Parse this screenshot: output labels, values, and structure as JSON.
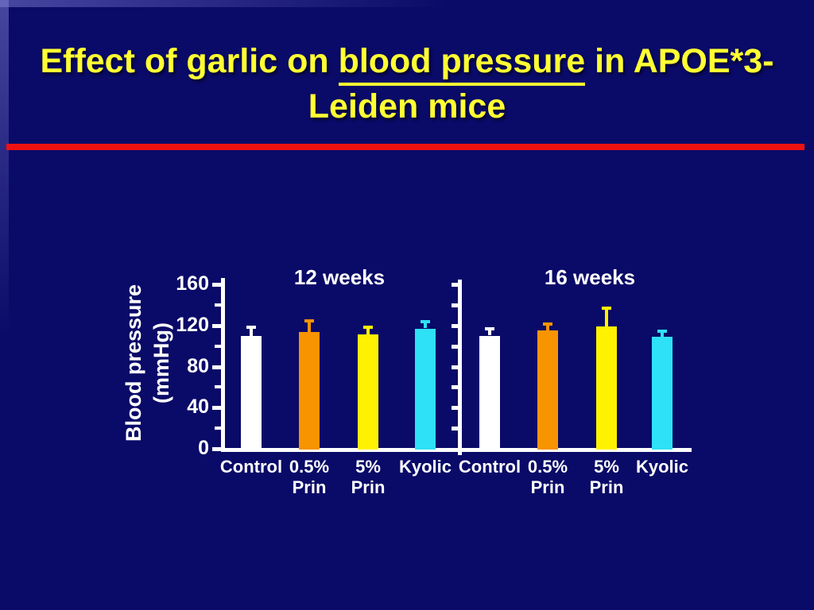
{
  "slide": {
    "background_color": "#0a0a68",
    "divider_color": "#ee1111",
    "title": {
      "color": "#ffff33",
      "full_text": "Effect of garlic on blood pressure in APOE*3-Leiden mice",
      "lines": [
        {
          "segments": [
            {
              "text": "Effect of garlic on ",
              "underline": false
            },
            {
              "text": "blood pressure",
              "underline": true
            },
            {
              "text": " in APOE*3-",
              "underline": false
            }
          ]
        },
        {
          "segments": [
            {
              "text": "Leiden mice",
              "underline": false
            }
          ]
        }
      ]
    }
  },
  "chart_data": {
    "type": "bar",
    "ylabel": "Blood pressure (mmHg)",
    "ylabel_lines": [
      "Blood pressure",
      "(mmHg)"
    ],
    "ylim": [
      0,
      160
    ],
    "yticks": [
      0,
      40,
      80,
      120,
      160
    ],
    "minor_tick_step": 20,
    "grid": false,
    "legend": "none",
    "axis_color": "#ffffff",
    "text_color": "#ffffff",
    "categories": [
      "Control",
      "0.5% Prin",
      "5% Prin",
      "Kyolic"
    ],
    "category_label_lines": [
      [
        "Control"
      ],
      [
        "0.5%",
        "Prin"
      ],
      [
        "5%",
        "Prin"
      ],
      [
        "Kyolic"
      ]
    ],
    "bar_colors": [
      "#ffffff",
      "#f79400",
      "#fff200",
      "#2ee1f6"
    ],
    "error_bar_direction": "plus",
    "panels": [
      {
        "title": "12 weeks",
        "values": [
          110,
          114,
          111,
          117
        ],
        "error_plus": [
          10,
          12,
          9,
          8
        ]
      },
      {
        "title": "16 weeks",
        "values": [
          110,
          115,
          119,
          109
        ],
        "error_plus": [
          8,
          8,
          19,
          7
        ]
      }
    ]
  }
}
